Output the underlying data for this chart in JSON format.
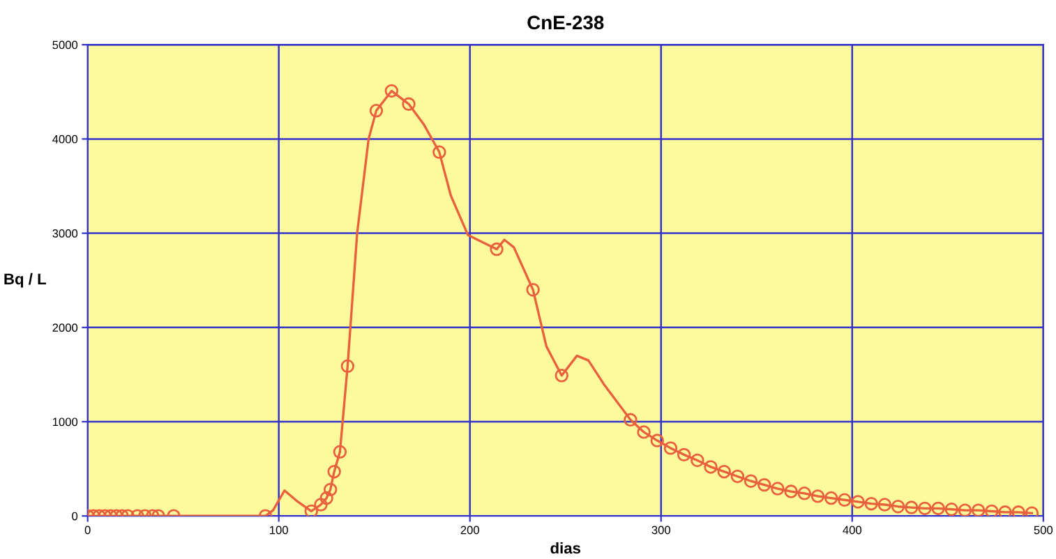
{
  "chart_data": {
    "type": "line",
    "title": "CnE-238",
    "xlabel": "dias",
    "ylabel": "Bq / L",
    "xlim": [
      0,
      500
    ],
    "xticks": [
      0,
      100,
      200,
      300,
      400,
      500
    ],
    "ylim": [
      0,
      5000
    ],
    "yticks": [
      0,
      1000,
      2000,
      3000,
      4000,
      5000
    ],
    "grid": true,
    "legend": false,
    "series": [
      {
        "marker": "none",
        "color": "#e8603c",
        "x": [
          0,
          45,
          93,
          97,
          103,
          110,
          117,
          122,
          125,
          127,
          129,
          132,
          136,
          141,
          147,
          151,
          159,
          168,
          176,
          184,
          190,
          199,
          214,
          218,
          223,
          233,
          240,
          248,
          256,
          262,
          270,
          284,
          291,
          298,
          305,
          312,
          319,
          326,
          333,
          340,
          347,
          354,
          361,
          368,
          375,
          382,
          389,
          396,
          403,
          410,
          417,
          424,
          431,
          438,
          445,
          452,
          459,
          466,
          473,
          480,
          487,
          494
        ],
        "values": [
          0,
          0,
          0,
          60,
          270,
          150,
          50,
          120,
          190,
          280,
          470,
          680,
          1590,
          3000,
          4000,
          4300,
          4510,
          4370,
          4150,
          3860,
          3400,
          2980,
          2830,
          2930,
          2850,
          2400,
          1800,
          1490,
          1700,
          1650,
          1400,
          1020,
          890,
          800,
          720,
          650,
          590,
          520,
          470,
          420,
          370,
          330,
          290,
          260,
          240,
          210,
          190,
          170,
          150,
          130,
          120,
          100,
          90,
          80,
          80,
          70,
          60,
          60,
          50,
          40,
          40,
          30
        ]
      },
      {
        "type": "scatter",
        "marker": "circle",
        "color": "#e8603c",
        "x": [
          0,
          3,
          6,
          9,
          12,
          15,
          18,
          21,
          26,
          30,
          34,
          37,
          45,
          93,
          117,
          122,
          125,
          127,
          129,
          132,
          136,
          151,
          159,
          168,
          184,
          214,
          233,
          248,
          284,
          291,
          298,
          305,
          312,
          319,
          326,
          333,
          340,
          347,
          354,
          361,
          368,
          375,
          382,
          389,
          396,
          403,
          410,
          417,
          424,
          431,
          438,
          445,
          452,
          459,
          466,
          473,
          480,
          487,
          494
        ],
        "values": [
          0,
          0,
          0,
          0,
          0,
          0,
          0,
          0,
          0,
          0,
          0,
          0,
          0,
          0,
          50,
          120,
          190,
          280,
          470,
          680,
          1590,
          4300,
          4510,
          4370,
          3860,
          2830,
          2400,
          1490,
          1020,
          890,
          800,
          720,
          650,
          590,
          520,
          470,
          420,
          370,
          330,
          290,
          260,
          240,
          210,
          190,
          170,
          150,
          130,
          120,
          100,
          90,
          80,
          80,
          70,
          60,
          60,
          50,
          40,
          40,
          30
        ]
      }
    ]
  }
}
